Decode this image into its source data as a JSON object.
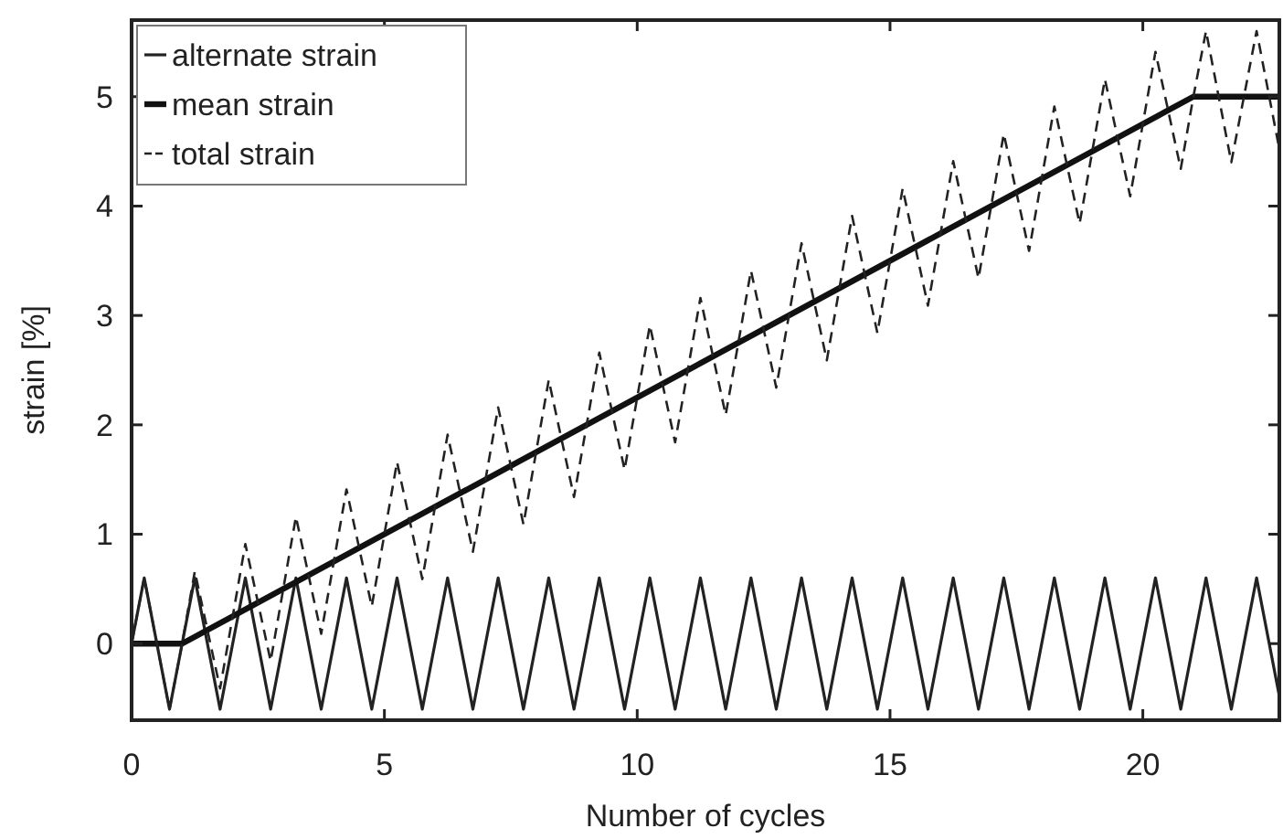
{
  "chart_data": {
    "type": "line",
    "xlabel": "Number of cycles",
    "ylabel": "strain [%]",
    "xlim": [
      0,
      22.7
    ],
    "ylim": [
      -0.7,
      5.7
    ],
    "xticks": [
      0,
      5,
      10,
      15,
      20
    ],
    "yticks": [
      0,
      1,
      2,
      3,
      4,
      5
    ],
    "grid": false,
    "legend": "top left",
    "series": [
      {
        "name": "alternate strain",
        "color": "#222222",
        "line_style": "solid",
        "x": [
          0,
          0.25,
          0.75,
          1.25,
          1.75,
          2.25,
          2.75,
          3.25,
          3.75,
          4.25,
          4.75,
          5.25,
          5.75,
          6.25,
          6.75,
          7.25,
          7.75,
          8.25,
          8.75,
          9.25,
          9.75,
          10.25,
          10.75,
          11.25,
          11.75,
          12.25,
          12.75,
          13.25,
          13.75,
          14.25,
          14.75,
          15.25,
          15.75,
          16.25,
          16.75,
          17.25,
          17.75,
          18.25,
          18.75,
          19.25,
          19.75,
          20.25,
          20.75,
          21.25,
          21.75,
          22.25,
          22.7
        ],
        "values": [
          0,
          0.6,
          -0.6,
          0.6,
          -0.6,
          0.6,
          -0.6,
          0.6,
          -0.6,
          0.6,
          -0.6,
          0.6,
          -0.6,
          0.6,
          -0.6,
          0.6,
          -0.6,
          0.6,
          -0.6,
          0.6,
          -0.6,
          0.6,
          -0.6,
          0.6,
          -0.6,
          0.6,
          -0.6,
          0.6,
          -0.6,
          0.6,
          -0.6,
          0.6,
          -0.6,
          0.6,
          -0.6,
          0.6,
          -0.6,
          0.6,
          -0.6,
          0.6,
          -0.6,
          0.6,
          -0.6,
          0.6,
          -0.6,
          0.6,
          -0.48
        ]
      },
      {
        "name": "mean strain",
        "color": "#111111",
        "line_style": "solid",
        "x": [
          0,
          1,
          21,
          22.7
        ],
        "values": [
          0,
          0,
          5,
          5
        ]
      },
      {
        "name": "total strain",
        "color": "#222222",
        "line_style": "dashed",
        "x": [
          0,
          0.25,
          0.75,
          1,
          1.25,
          1.75,
          2.25,
          2.75,
          3.25,
          3.75,
          4.25,
          4.75,
          5.25,
          5.75,
          6.25,
          6.75,
          7.25,
          7.75,
          8.25,
          8.75,
          9.25,
          9.75,
          10.25,
          10.75,
          11.25,
          11.75,
          12.25,
          12.75,
          13.25,
          13.75,
          14.25,
          14.75,
          15.25,
          15.75,
          16.25,
          16.75,
          17.25,
          17.75,
          18.25,
          18.75,
          19.25,
          19.75,
          20.25,
          20.75,
          21,
          21.25,
          21.75,
          22.25,
          22.7
        ],
        "values": [
          0,
          0.6,
          -0.6,
          0,
          0.66,
          -0.41,
          0.91,
          -0.16,
          1.16,
          0.09,
          1.41,
          0.34,
          1.66,
          0.59,
          1.91,
          0.84,
          2.16,
          1.09,
          2.41,
          1.34,
          2.66,
          1.59,
          2.91,
          1.84,
          3.16,
          2.09,
          3.41,
          2.34,
          3.66,
          2.59,
          3.91,
          2.84,
          4.16,
          3.09,
          4.41,
          3.34,
          4.66,
          3.59,
          4.91,
          3.84,
          5.16,
          4.09,
          5.41,
          4.34,
          5,
          5.6,
          4.4,
          5.6,
          4.52
        ]
      }
    ]
  }
}
